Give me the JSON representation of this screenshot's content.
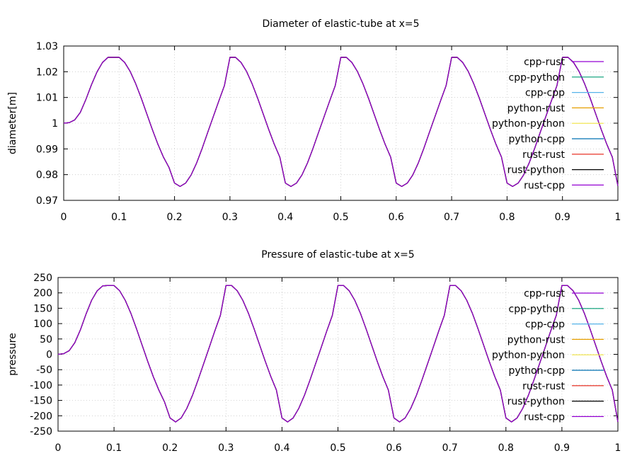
{
  "chart_data": [
    {
      "type": "line",
      "title": "Diameter of elastic-tube at x=5",
      "xlabel": "",
      "ylabel": "diameter[m]",
      "xlim": [
        0,
        1
      ],
      "ylim": [
        0.97,
        1.03
      ],
      "xticks": [
        0,
        0.1,
        0.2,
        0.3,
        0.4,
        0.5,
        0.6,
        0.7,
        0.8,
        0.9,
        1
      ],
      "xtick_labels": [
        "0",
        "0.1",
        "0.2",
        "0.3",
        "0.4",
        "0.5",
        "0.6",
        "0.7",
        "0.8",
        "0.9",
        "1"
      ],
      "yticks": [
        0.97,
        0.98,
        0.99,
        1.0,
        1.01,
        1.02,
        1.03
      ],
      "ytick_labels": [
        "0.97",
        "0.98",
        "0.99",
        "1",
        "1.01",
        "1.02",
        "1.03"
      ],
      "grid": true,
      "legend_position": "top-right",
      "x": [
        0,
        0.01,
        0.02,
        0.03,
        0.04,
        0.05,
        0.06,
        0.07,
        0.08,
        0.09,
        0.1,
        0.11,
        0.12,
        0.13,
        0.14,
        0.15,
        0.16,
        0.17,
        0.18,
        0.19,
        0.2,
        0.21,
        0.22,
        0.23,
        0.24,
        0.25,
        0.26,
        0.27,
        0.28,
        0.29,
        0.3,
        0.31,
        0.32,
        0.33,
        0.34,
        0.35,
        0.36,
        0.37,
        0.38,
        0.39,
        0.4,
        0.41,
        0.42,
        0.43,
        0.44,
        0.45,
        0.46,
        0.47,
        0.48,
        0.49,
        0.5,
        0.51,
        0.52,
        0.53,
        0.54,
        0.55,
        0.56,
        0.57,
        0.58,
        0.59,
        0.6,
        0.61,
        0.62,
        0.63,
        0.64,
        0.65,
        0.66,
        0.67,
        0.68,
        0.69,
        0.7,
        0.71,
        0.72,
        0.73,
        0.74,
        0.75,
        0.76,
        0.77,
        0.78,
        0.79,
        0.8,
        0.81,
        0.82,
        0.83,
        0.84,
        0.85,
        0.86,
        0.87,
        0.88,
        0.89,
        0.9,
        0.91,
        0.92,
        0.93,
        0.94,
        0.95,
        0.96,
        0.97,
        0.98,
        0.99,
        1.0
      ],
      "y": [
        1.0,
        1.0002,
        1.0013,
        1.0042,
        1.0092,
        1.0149,
        1.0199,
        1.0236,
        1.0256,
        1.0256,
        1.0256,
        1.0236,
        1.0201,
        1.0153,
        1.0097,
        1.0036,
        0.9975,
        0.9918,
        0.9868,
        0.9828,
        0.9767,
        0.9754,
        0.9767,
        0.9799,
        0.9846,
        0.9903,
        0.9965,
        1.0026,
        1.0087,
        1.0146,
        1.0256,
        1.0256,
        1.0236,
        1.0201,
        1.0153,
        1.0097,
        1.0036,
        0.9975,
        0.9918,
        0.9868,
        0.9767,
        0.9754,
        0.9767,
        0.9799,
        0.9846,
        0.9903,
        0.9965,
        1.0026,
        1.0087,
        1.0146,
        1.0256,
        1.0256,
        1.0236,
        1.0201,
        1.0153,
        1.0097,
        1.0036,
        0.9975,
        0.9918,
        0.9868,
        0.9767,
        0.9754,
        0.9767,
        0.9799,
        0.9846,
        0.9903,
        0.9965,
        1.0026,
        1.0087,
        1.0146,
        1.0256,
        1.0256,
        1.0236,
        1.0201,
        1.0153,
        1.0097,
        1.0036,
        0.9975,
        0.9918,
        0.9868,
        0.9767,
        0.9754,
        0.9767,
        0.9799,
        0.9846,
        0.9903,
        0.9965,
        1.0026,
        1.0087,
        1.0146,
        1.0256,
        1.0256,
        1.0236,
        1.0201,
        1.0153,
        1.0097,
        1.0036,
        0.9975,
        0.9918,
        0.9868,
        0.9756
      ],
      "series": [
        {
          "name": "cpp-rust",
          "color": "#9400d3"
        },
        {
          "name": "cpp-python",
          "color": "#009e73"
        },
        {
          "name": "cpp-cpp",
          "color": "#56b4e9"
        },
        {
          "name": "python-rust",
          "color": "#e69f00"
        },
        {
          "name": "python-python",
          "color": "#f0e442"
        },
        {
          "name": "python-cpp",
          "color": "#0072b2"
        },
        {
          "name": "rust-rust",
          "color": "#e51e10"
        },
        {
          "name": "rust-python",
          "color": "#000000"
        },
        {
          "name": "rust-cpp",
          "color": "#9400d3"
        }
      ]
    },
    {
      "type": "line",
      "title": "Pressure of elastic-tube at x=5",
      "xlabel": "",
      "ylabel": "pressure",
      "xlim": [
        0,
        1
      ],
      "ylim": [
        -250,
        250
      ],
      "xticks": [
        0,
        0.1,
        0.2,
        0.3,
        0.4,
        0.5,
        0.6,
        0.7,
        0.8,
        0.9,
        1
      ],
      "xtick_labels": [
        "0",
        "0.1",
        "0.2",
        "0.3",
        "0.4",
        "0.5",
        "0.6",
        "0.7",
        "0.8",
        "0.9",
        "1"
      ],
      "yticks": [
        -250,
        -200,
        -150,
        -100,
        -50,
        0,
        50,
        100,
        150,
        200,
        250
      ],
      "ytick_labels": [
        "-250",
        "-200",
        "-150",
        "-100",
        "-50",
        "0",
        "50",
        "100",
        "150",
        "200",
        "250"
      ],
      "grid": true,
      "legend_position": "top-right",
      "x": [
        0,
        0.01,
        0.02,
        0.03,
        0.04,
        0.05,
        0.06,
        0.07,
        0.08,
        0.09,
        0.1,
        0.11,
        0.12,
        0.13,
        0.14,
        0.15,
        0.16,
        0.17,
        0.18,
        0.19,
        0.2,
        0.21,
        0.22,
        0.23,
        0.24,
        0.25,
        0.26,
        0.27,
        0.28,
        0.29,
        0.3,
        0.31,
        0.32,
        0.33,
        0.34,
        0.35,
        0.36,
        0.37,
        0.38,
        0.39,
        0.4,
        0.41,
        0.42,
        0.43,
        0.44,
        0.45,
        0.46,
        0.47,
        0.48,
        0.49,
        0.5,
        0.51,
        0.52,
        0.53,
        0.54,
        0.55,
        0.56,
        0.57,
        0.58,
        0.59,
        0.6,
        0.61,
        0.62,
        0.63,
        0.64,
        0.65,
        0.66,
        0.67,
        0.68,
        0.69,
        0.7,
        0.71,
        0.72,
        0.73,
        0.74,
        0.75,
        0.76,
        0.77,
        0.78,
        0.79,
        0.8,
        0.81,
        0.82,
        0.83,
        0.84,
        0.85,
        0.86,
        0.87,
        0.88,
        0.89,
        0.9,
        0.91,
        0.92,
        0.93,
        0.94,
        0.95,
        0.96,
        0.97,
        0.98,
        0.99,
        1.0
      ],
      "y": [
        0,
        2,
        12,
        38,
        80,
        131,
        176,
        207,
        223,
        224,
        224,
        207,
        176,
        134,
        84,
        31,
        -22,
        -72,
        -116,
        -154,
        -207,
        -220,
        -207,
        -176,
        -134,
        -84,
        -31,
        22,
        76,
        127,
        224,
        224,
        207,
        176,
        134,
        84,
        31,
        -22,
        -72,
        -116,
        -207,
        -220,
        -207,
        -176,
        -134,
        -84,
        -31,
        22,
        76,
        127,
        224,
        224,
        207,
        176,
        134,
        84,
        31,
        -22,
        -72,
        -116,
        -207,
        -220,
        -207,
        -176,
        -134,
        -84,
        -31,
        22,
        76,
        127,
        224,
        224,
        207,
        176,
        134,
        84,
        31,
        -22,
        -72,
        -116,
        -207,
        -220,
        -207,
        -176,
        -134,
        -84,
        -31,
        22,
        76,
        127,
        224,
        224,
        207,
        176,
        134,
        84,
        31,
        -22,
        -72,
        -116,
        -220
      ],
      "series": [
        {
          "name": "cpp-rust",
          "color": "#9400d3"
        },
        {
          "name": "cpp-python",
          "color": "#009e73"
        },
        {
          "name": "cpp-cpp",
          "color": "#56b4e9"
        },
        {
          "name": "python-rust",
          "color": "#e69f00"
        },
        {
          "name": "python-python",
          "color": "#f0e442"
        },
        {
          "name": "python-cpp",
          "color": "#0072b2"
        },
        {
          "name": "rust-rust",
          "color": "#e51e10"
        },
        {
          "name": "rust-python",
          "color": "#000000"
        },
        {
          "name": "rust-cpp",
          "color": "#9400d3"
        }
      ]
    }
  ]
}
